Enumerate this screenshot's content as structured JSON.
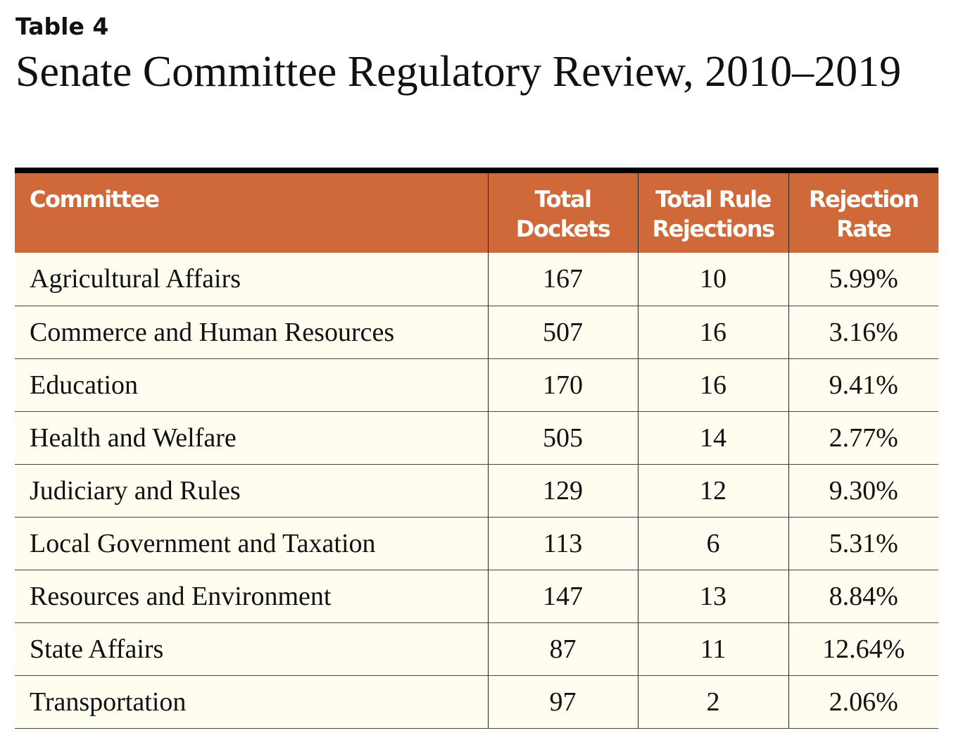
{
  "label": "Table 4",
  "title": "Senate Committee Regulatory Review, 2010–2019",
  "colors": {
    "header_bg": "#CF6939",
    "row_bg": "#FEFDF0",
    "header_text": "#FFFFFF"
  },
  "table": {
    "headers": [
      "Committee",
      "Total Dockets",
      "Total Rule Rejections",
      "Rejection Rate"
    ],
    "rows": [
      [
        "Agricultural Affairs",
        "167",
        "10",
        "5.99%"
      ],
      [
        "Commerce and Human Resources",
        "507",
        "16",
        "3.16%"
      ],
      [
        "Education",
        "170",
        "16",
        "9.41%"
      ],
      [
        "Health and Welfare",
        "505",
        "14",
        "2.77%"
      ],
      [
        "Judiciary and Rules",
        "129",
        "12",
        "9.30%"
      ],
      [
        "Local Government and Taxation",
        "113",
        "6",
        "5.31%"
      ],
      [
        "Resources and Environment",
        "147",
        "13",
        "8.84%"
      ],
      [
        "State Affairs",
        "87",
        "11",
        "12.64%"
      ],
      [
        "Transportation",
        "97",
        "2",
        "2.06%"
      ]
    ]
  }
}
